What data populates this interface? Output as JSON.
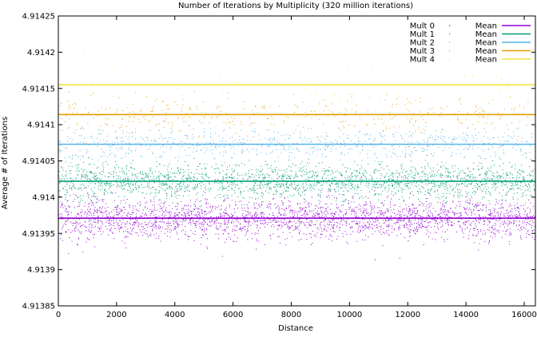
{
  "chart_data": {
    "type": "scatter",
    "title": "Number of Iterations by Multiplicity (320 million iterations)",
    "xlabel": "Distance",
    "ylabel": "Average # of Iterations",
    "xlim": [
      0,
      16384
    ],
    "ylim": [
      4.91385,
      4.91425
    ],
    "x_ticks": [
      0,
      2000,
      4000,
      6000,
      8000,
      10000,
      12000,
      14000,
      16000
    ],
    "y_ticks": [
      4.91385,
      4.9139,
      4.91395,
      4.914,
      4.91405,
      4.9141,
      4.91415,
      4.9142,
      4.91425
    ],
    "x_tick_labels": [
      "0",
      "2000",
      "4000",
      "6000",
      "8000",
      "10000",
      "12000",
      "14000",
      "16000"
    ],
    "y_tick_labels": [
      "4.91385",
      "4.9139",
      "4.91395",
      "4.914",
      "4.91405",
      "4.9141",
      "4.91415",
      "4.9142",
      "4.91425"
    ],
    "grid": false,
    "legend_position": "top-right",
    "legend_mean_label": "Mean",
    "series": [
      {
        "name": "Mult 0",
        "color": "#9400d3",
        "mean": 4.913971,
        "spread": 1.35e-05,
        "points": 2600
      },
      {
        "name": "Mult 1",
        "color": "#009e73",
        "mean": 4.914022,
        "spread": 1.2e-05,
        "points": 2200
      },
      {
        "name": "Mult 2",
        "color": "#56b4e9",
        "mean": 4.914073,
        "spread": 1.1e-05,
        "points": 800
      },
      {
        "name": "Mult 3",
        "color": "#e69f00",
        "mean": 4.914114,
        "spread": 1.2e-05,
        "points": 380
      },
      {
        "name": "Mult 4",
        "color": "#f0e442",
        "mean": 4.914155,
        "spread": 1.5e-05,
        "points": 60
      }
    ]
  }
}
